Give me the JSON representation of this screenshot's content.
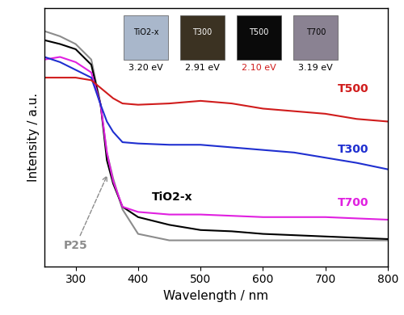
{
  "chart_data": {
    "type": "line",
    "xlabel": "Wavelength / nm",
    "ylabel": "Intensity / a.u.",
    "x": [
      250,
      275,
      300,
      325,
      340,
      350,
      360,
      375,
      400,
      450,
      500,
      550,
      600,
      650,
      700,
      750,
      800
    ],
    "xlim": [
      250,
      800
    ],
    "xticks": [
      300,
      400,
      500,
      600,
      700,
      800
    ],
    "ylim": [
      0,
      1
    ],
    "yticks": [],
    "tick_labels": "x",
    "series": [
      {
        "name": "P25",
        "color": "#8c8c8c",
        "values": [
          0.91,
          0.89,
          0.86,
          0.8,
          0.625,
          0.44,
          0.34,
          0.22,
          0.125,
          0.1,
          0.1,
          0.1,
          0.1,
          0.1,
          0.1,
          0.1,
          0.1
        ]
      },
      {
        "name": "TiO2-x",
        "color": "#000000",
        "values": [
          0.875,
          0.86,
          0.84,
          0.78,
          0.625,
          0.41,
          0.32,
          0.23,
          0.19,
          0.16,
          0.14,
          0.135,
          0.125,
          0.12,
          0.115,
          0.11,
          0.105
        ]
      },
      {
        "name": "T700",
        "color": "#e020e0",
        "values": [
          0.8,
          0.81,
          0.79,
          0.75,
          0.625,
          0.44,
          0.33,
          0.23,
          0.21,
          0.2,
          0.2,
          0.195,
          0.19,
          0.19,
          0.19,
          0.185,
          0.18
        ]
      },
      {
        "name": "T300",
        "color": "#1f2fd0",
        "values": [
          0.81,
          0.79,
          0.76,
          0.73,
          0.625,
          0.56,
          0.52,
          0.48,
          0.475,
          0.47,
          0.47,
          0.46,
          0.45,
          0.44,
          0.42,
          0.4,
          0.375
        ]
      },
      {
        "name": "T500",
        "color": "#d01c1c",
        "values": [
          0.73,
          0.73,
          0.73,
          0.72,
          0.69,
          0.67,
          0.65,
          0.63,
          0.625,
          0.63,
          0.64,
          0.63,
          0.61,
          0.6,
          0.59,
          0.57,
          0.56
        ]
      }
    ]
  },
  "insets": [
    {
      "label": "TiO2-x",
      "band_gap": "3.20 eV",
      "color": "#a9b7cb"
    },
    {
      "label": "T300",
      "band_gap": "2.91 eV",
      "color": "#3b3222"
    },
    {
      "label": "T500",
      "band_gap": "2.10 eV",
      "color": "#0a0a0a",
      "highlight": true
    },
    {
      "label": "T700",
      "band_gap": "3.19 eV",
      "color": "#8a8292"
    }
  ]
}
